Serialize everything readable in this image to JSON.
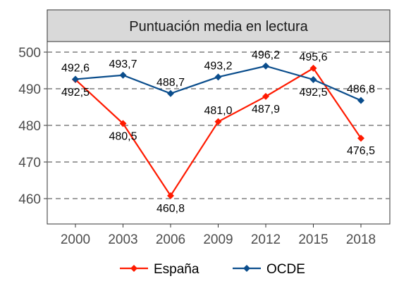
{
  "chart_data": {
    "type": "line",
    "title": "Puntuación media en lectura",
    "categories": [
      "2000",
      "2003",
      "2006",
      "2009",
      "2012",
      "2015",
      "2018"
    ],
    "ylim": [
      450,
      505
    ],
    "yticks": [
      460,
      470,
      480,
      490,
      500
    ],
    "grid": "horizontal dashed",
    "legend_position": "bottom",
    "series": [
      {
        "name": "España",
        "color": "#ff1a00",
        "marker": "diamond",
        "values": [
          492.5,
          480.5,
          460.8,
          481.0,
          487.9,
          495.6,
          476.5
        ],
        "labels": [
          "492,5",
          "480,5",
          "460,8",
          "481,0",
          "487,9",
          "495,6",
          "476,5"
        ]
      },
      {
        "name": "OCDE",
        "color": "#0a4d8c",
        "marker": "diamond",
        "values": [
          492.6,
          493.7,
          488.7,
          493.2,
          496.2,
          492.5,
          486.8
        ],
        "labels": [
          "492,6",
          "493,7",
          "488,7",
          "493,2",
          "496,2",
          "492,5",
          "486,8"
        ]
      }
    ]
  }
}
